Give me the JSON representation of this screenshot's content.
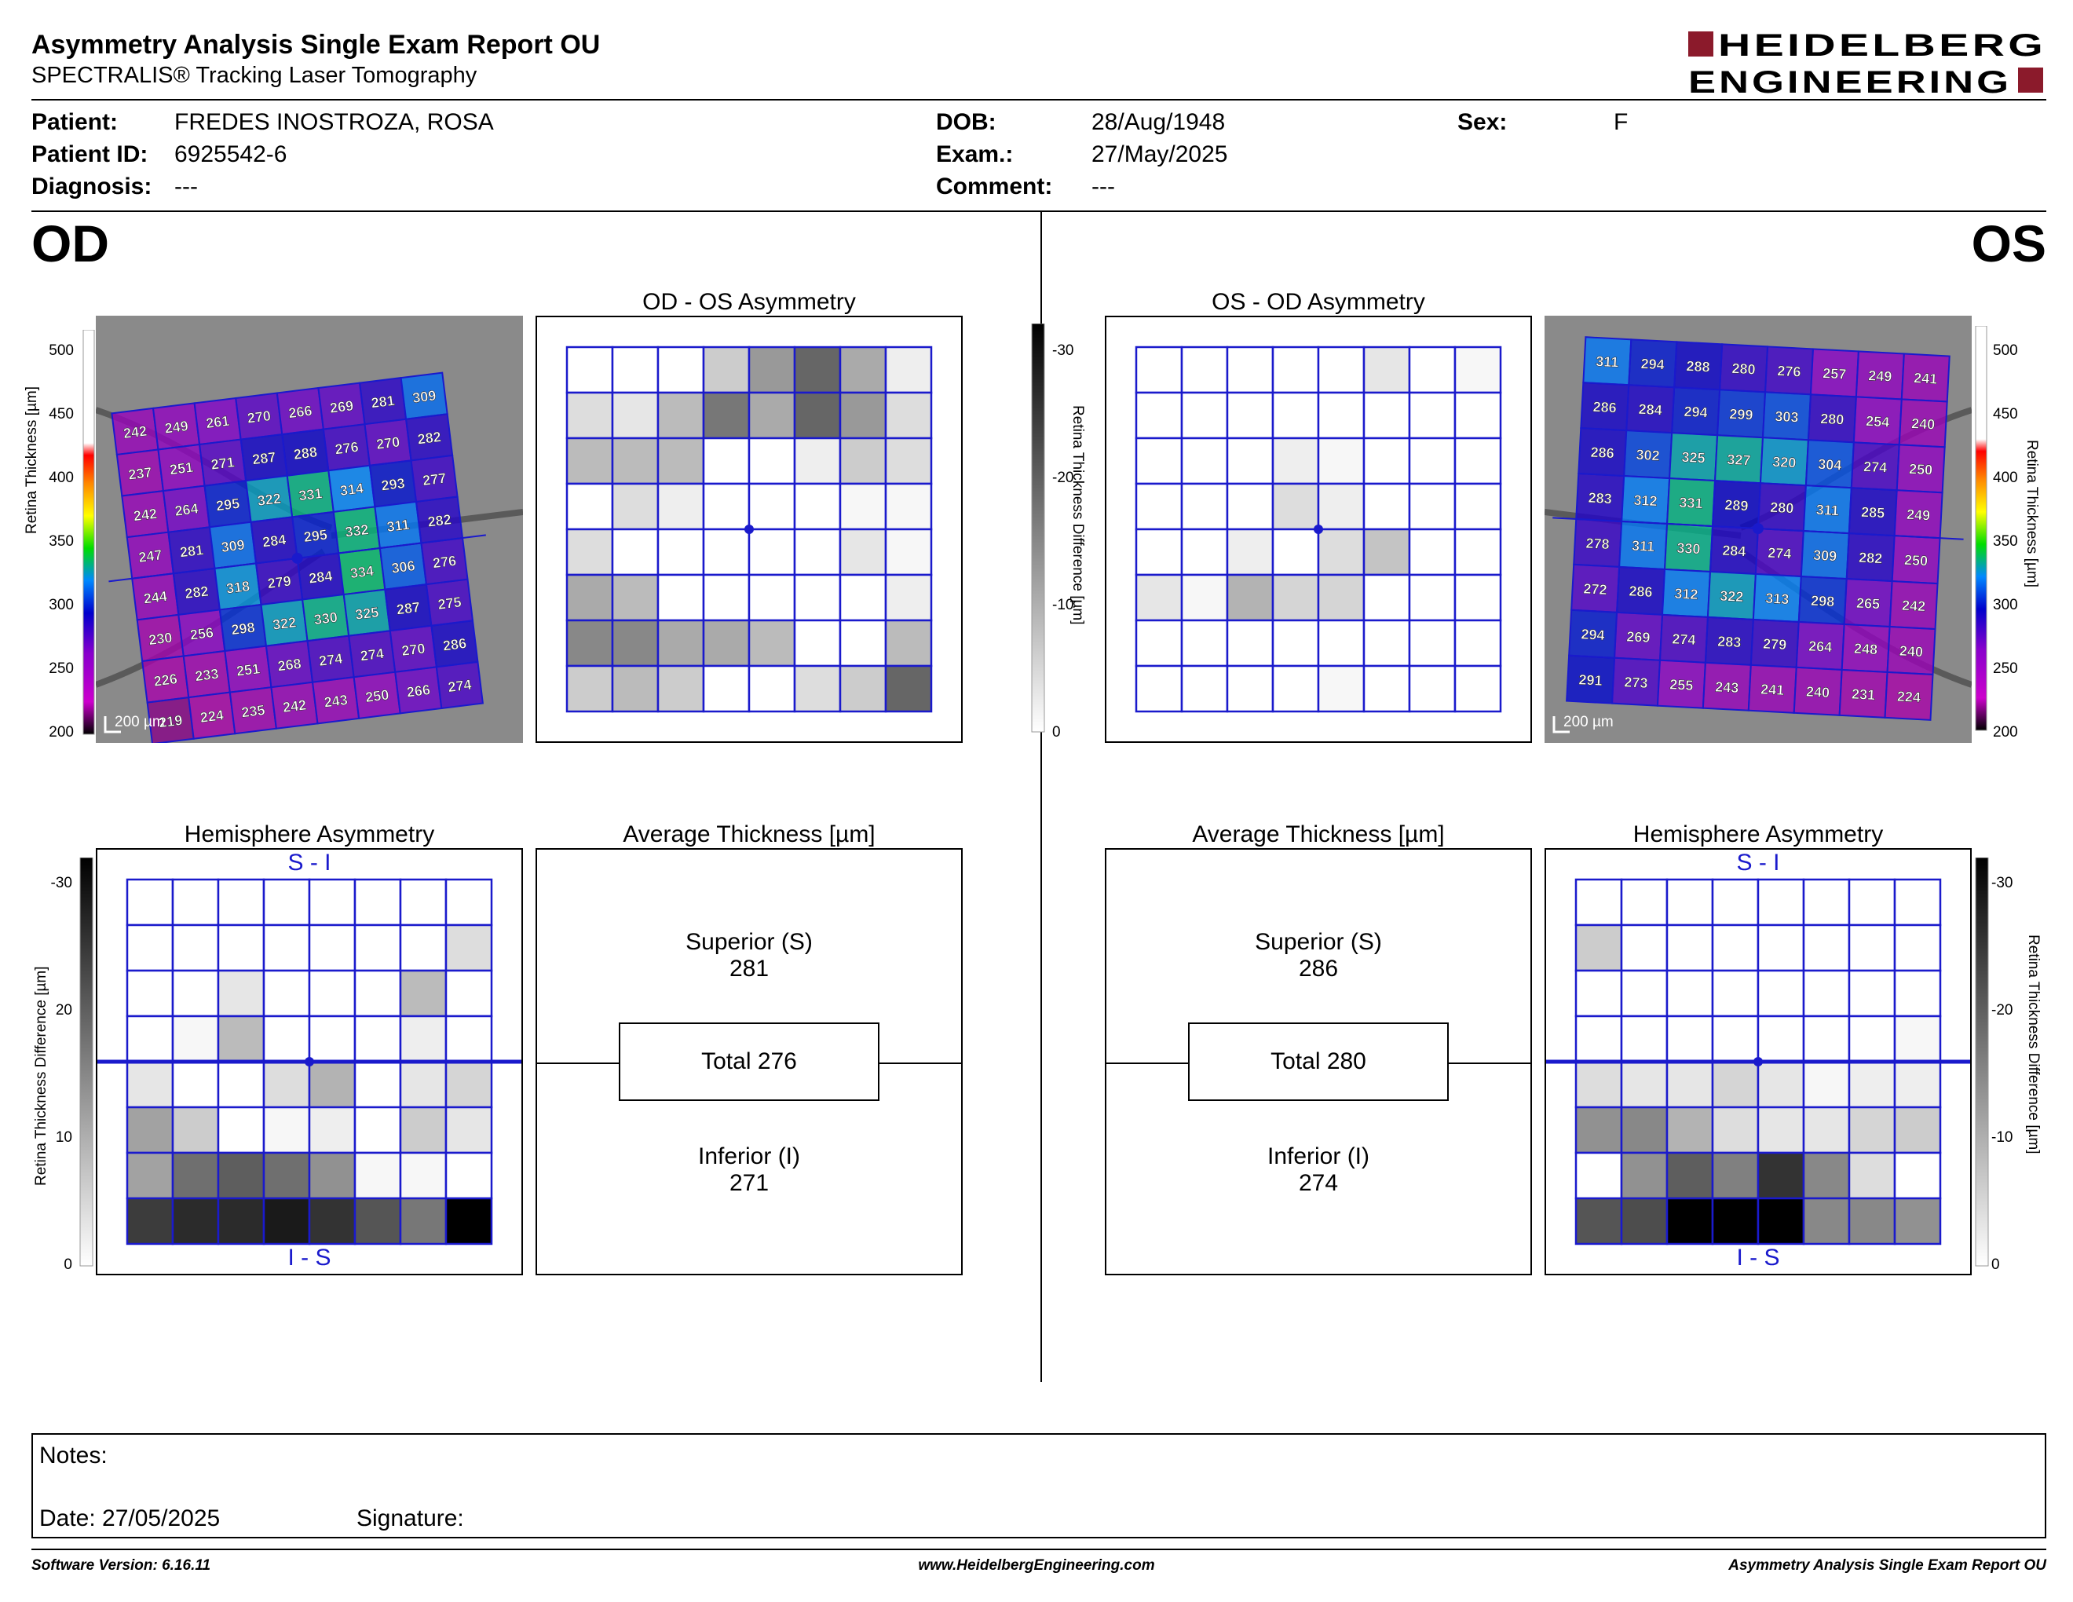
{
  "header": {
    "title": "Asymmetry Analysis Single Exam Report OU",
    "subtitle": "SPECTRALIS® Tracking Laser Tomography",
    "logo_line1": "HEIDELBERG",
    "logo_line2": "ENGINEERING",
    "brand_color": "#8b1a2b"
  },
  "patient": {
    "patient_label": "Patient:",
    "patient_value": "FREDES INOSTROZA, ROSA",
    "id_label": "Patient ID:",
    "id_value": "6925542-6",
    "diag_label": "Diagnosis:",
    "diag_value": "---",
    "dob_label": "DOB:",
    "dob_value": "28/Aug/1948",
    "exam_label": "Exam.:",
    "exam_value": "27/May/2025",
    "comment_label": "Comment:",
    "comment_value": "---",
    "sex_label": "Sex:",
    "sex_value": "F"
  },
  "od": {
    "eye_label": "OD",
    "asym_title": "OD - OS Asymmetry",
    "hemi_title": "Hemisphere Asymmetry",
    "avg_title": "Average Thickness [µm]",
    "hemi_top": "S - I",
    "hemi_bottom": "I - S",
    "superior_label": "Superior (S)",
    "superior_value": "281",
    "total_label": "Total 276",
    "inferior_label": "Inferior (I)",
    "inferior_value": "271",
    "scale_bar": "200 µm",
    "thickness_grid": [
      [
        242,
        249,
        261,
        270,
        266,
        269,
        281,
        309
      ],
      [
        237,
        251,
        271,
        287,
        288,
        276,
        270,
        282
      ],
      [
        242,
        264,
        295,
        322,
        331,
        314,
        293,
        277
      ],
      [
        247,
        281,
        309,
        284,
        295,
        332,
        311,
        282
      ],
      [
        244,
        282,
        318,
        279,
        284,
        334,
        306,
        276
      ],
      [
        230,
        256,
        298,
        322,
        330,
        325,
        287,
        275
      ],
      [
        226,
        233,
        251,
        268,
        274,
        274,
        270,
        286
      ],
      [
        219,
        224,
        235,
        242,
        243,
        250,
        266,
        274
      ]
    ],
    "asym_grid": [
      [
        0,
        0,
        0,
        6,
        12,
        18,
        10,
        2
      ],
      [
        4,
        3,
        8,
        16,
        10,
        18,
        12,
        4
      ],
      [
        8,
        8,
        8,
        0,
        0,
        2,
        6,
        4
      ],
      [
        0,
        4,
        2,
        0,
        0,
        0,
        1,
        1
      ],
      [
        4,
        0,
        0,
        0,
        0,
        0,
        3,
        1
      ],
      [
        10,
        8,
        0,
        0,
        0,
        0,
        0,
        2
      ],
      [
        14,
        14,
        10,
        10,
        8,
        0,
        0,
        8
      ],
      [
        6,
        8,
        6,
        0,
        0,
        4,
        6,
        18
      ]
    ],
    "hemi_grid": [
      [
        0,
        0,
        0,
        0,
        0,
        0,
        0,
        0
      ],
      [
        0,
        0,
        0,
        0,
        0,
        0,
        0,
        4
      ],
      [
        0,
        0,
        3,
        0,
        0,
        0,
        8,
        0
      ],
      [
        0,
        1,
        8,
        0,
        0,
        0,
        2,
        0
      ],
      [
        3,
        0,
        0,
        4,
        9,
        0,
        3,
        5
      ],
      [
        11,
        6,
        0,
        1,
        2,
        0,
        6,
        3
      ],
      [
        11,
        17,
        19,
        17,
        13,
        1,
        1,
        0
      ],
      [
        23,
        25,
        25,
        27,
        24,
        20,
        16,
        30
      ]
    ]
  },
  "os": {
    "eye_label": "OS",
    "asym_title": "OS - OD Asymmetry",
    "hemi_title": "Hemisphere Asymmetry",
    "avg_title": "Average Thickness [µm]",
    "hemi_top": "S - I",
    "hemi_bottom": "I - S",
    "superior_label": "Superior (S)",
    "superior_value": "286",
    "total_label": "Total 280",
    "inferior_label": "Inferior (I)",
    "inferior_value": "274",
    "scale_bar": "200 µm",
    "thickness_grid": [
      [
        311,
        294,
        288,
        280,
        276,
        257,
        249,
        241
      ],
      [
        286,
        284,
        294,
        299,
        303,
        280,
        254,
        240
      ],
      [
        286,
        302,
        325,
        327,
        320,
        304,
        274,
        250
      ],
      [
        283,
        312,
        331,
        289,
        280,
        311,
        285,
        249
      ],
      [
        278,
        311,
        330,
        284,
        274,
        309,
        282,
        250
      ],
      [
        272,
        286,
        312,
        322,
        313,
        298,
        265,
        242
      ],
      [
        294,
        269,
        274,
        283,
        279,
        264,
        248,
        240
      ],
      [
        291,
        273,
        255,
        243,
        241,
        240,
        231,
        224
      ]
    ],
    "asym_grid": [
      [
        0,
        0,
        0,
        0,
        0,
        3,
        0,
        1
      ],
      [
        0,
        0,
        0,
        0,
        0,
        0,
        0,
        0
      ],
      [
        0,
        0,
        0,
        2,
        1,
        0,
        0,
        0
      ],
      [
        0,
        0,
        0,
        4,
        2,
        0,
        0,
        0
      ],
      [
        0,
        0,
        2,
        0,
        4,
        7,
        0,
        0
      ],
      [
        3,
        1,
        9,
        5,
        5,
        0,
        0,
        0
      ],
      [
        0,
        0,
        0,
        0,
        0,
        0,
        0,
        0
      ],
      [
        0,
        0,
        0,
        0,
        1,
        0,
        0,
        0
      ]
    ],
    "hemi_grid": [
      [
        0,
        0,
        0,
        0,
        0,
        0,
        0,
        0
      ],
      [
        6,
        0,
        0,
        0,
        0,
        0,
        0,
        0
      ],
      [
        0,
        0,
        0,
        0,
        0,
        0,
        0,
        0
      ],
      [
        0,
        0,
        0,
        0,
        0,
        0,
        0,
        1
      ],
      [
        4,
        3,
        3,
        5,
        3,
        1,
        2,
        2
      ],
      [
        13,
        14,
        9,
        4,
        3,
        3,
        5,
        6
      ],
      [
        0,
        13,
        19,
        15,
        24,
        14,
        4,
        0
      ],
      [
        20,
        21,
        30,
        30,
        30,
        14,
        14,
        13
      ]
    ]
  },
  "scales": {
    "thickness_axis_label": "Retina Thickness [µm]",
    "thickness_ticks": [
      "500",
      "450",
      "400",
      "350",
      "300",
      "250",
      "200"
    ],
    "diff_axis_label": "Retina Thickness Difference [µm]",
    "diff_ticks": [
      "-30",
      "-20",
      "-10",
      "0"
    ],
    "hemi_ticks": [
      "-30",
      "20",
      "10",
      "0"
    ],
    "hemi_ticks_os": [
      "-30",
      "-20",
      "-10",
      "0"
    ]
  },
  "notes": {
    "notes_label": "Notes:",
    "date_label": "Date: 27/05/2025",
    "signature_label": "Signature:"
  },
  "footer": {
    "software": "Software Version: 6.16.11",
    "website": "www.HeidelbergEngineering.com",
    "report_name": "Asymmetry Analysis Single Exam Report OU"
  }
}
